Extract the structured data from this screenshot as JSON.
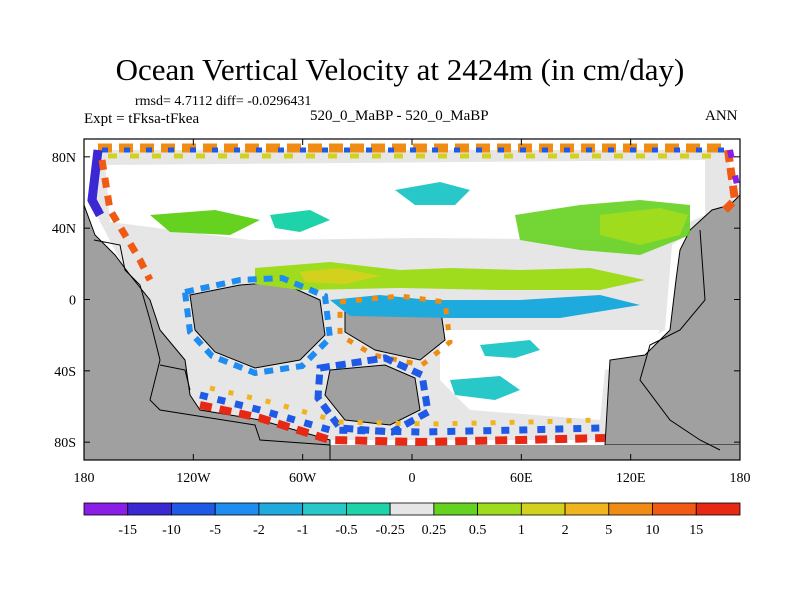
{
  "chart_data": {
    "type": "heatmap",
    "title": "Ocean Vertical Velocity at 2424m (in cm/day)",
    "stats": "rmsd= 4.7112  diff= -0.0296431",
    "experiment": "Expt = tFksa-tFkea",
    "cases": "520_0_MaBP - 520_0_MaBP",
    "season": "ANN",
    "x_ticks": [
      {
        "value": -180,
        "label": "180"
      },
      {
        "value": -120,
        "label": "120W"
      },
      {
        "value": -60,
        "label": "60W"
      },
      {
        "value": 0,
        "label": "0"
      },
      {
        "value": 60,
        "label": "60E"
      },
      {
        "value": 120,
        "label": "120E"
      },
      {
        "value": 180,
        "label": "180"
      }
    ],
    "y_ticks": [
      {
        "value": 80,
        "label": "80N"
      },
      {
        "value": 40,
        "label": "40N"
      },
      {
        "value": 0,
        "label": "0"
      },
      {
        "value": -40,
        "label": "40S"
      },
      {
        "value": -80,
        "label": "80S"
      }
    ],
    "xlim": [
      -180,
      180
    ],
    "ylim": [
      -90,
      90
    ],
    "colorbar": {
      "boundaries": [
        "-15",
        "-10",
        "-5",
        "-2",
        "-1",
        "-0.5",
        "-0.25",
        "0.25",
        "0.5",
        "1",
        "2",
        "5",
        "10",
        "15"
      ],
      "colors": [
        "#8a1ee6",
        "#3c28d2",
        "#1e5ae6",
        "#1e8cf0",
        "#1eaadc",
        "#28c8c8",
        "#1ed2aa",
        "#e6e6e6",
        "#64d21e",
        "#a0dc1e",
        "#d2d21e",
        "#f0b41e",
        "#f08c14",
        "#f05a14",
        "#e62814"
      ]
    },
    "colors": {
      "land": "#a0a0a0",
      "coast": "#000000",
      "background": "#ffffff"
    }
  }
}
